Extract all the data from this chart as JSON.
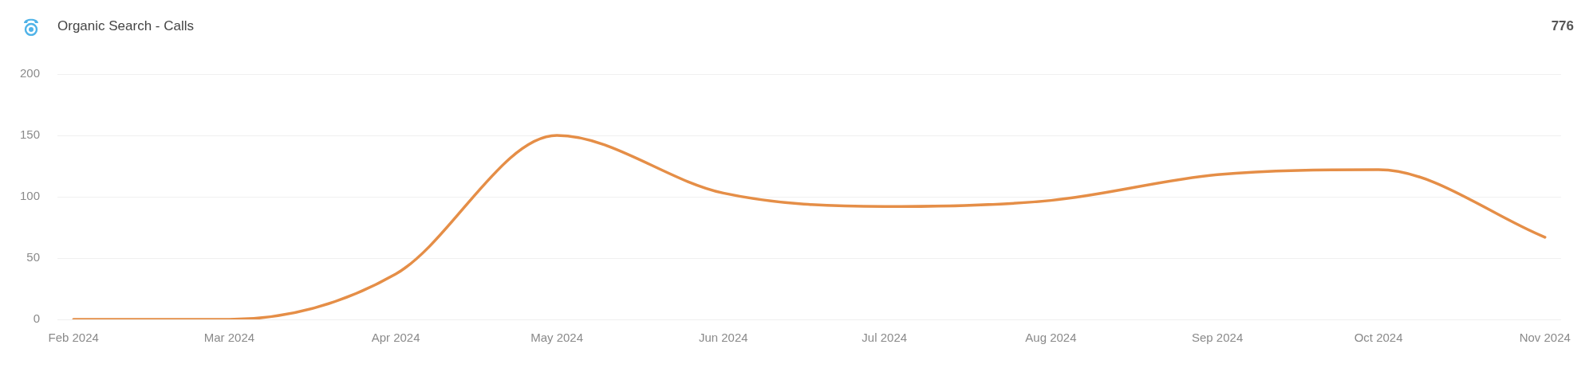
{
  "chart_data": {
    "type": "line",
    "title": "Organic Search - Calls",
    "annotations": [
      "776"
    ],
    "x": [
      "2024-02-01",
      "2024-03-01",
      "2024-04-01",
      "2024-05-01",
      "2024-06-01",
      "2024-07-01",
      "2024-08-01",
      "2024-09-01",
      "2024-10-01",
      "2024-11-01"
    ],
    "series": [
      {
        "color": "#e58e47",
        "values": [
          0,
          0,
          37,
          150,
          103,
          92,
          97,
          118,
          122,
          67
        ]
      }
    ],
    "xlim": [
      "2024-01-29",
      "2024-11-04"
    ],
    "xticks": [
      {
        "value": "2024-02-01",
        "label": "Feb 2024"
      },
      {
        "value": "2024-03-01",
        "label": "Mar 2024"
      },
      {
        "value": "2024-04-01",
        "label": "Apr 2024"
      },
      {
        "value": "2024-05-01",
        "label": "May 2024"
      },
      {
        "value": "2024-06-01",
        "label": "Jun 2024"
      },
      {
        "value": "2024-07-01",
        "label": "Jul 2024"
      },
      {
        "value": "2024-08-01",
        "label": "Aug 2024"
      },
      {
        "value": "2024-09-01",
        "label": "Sep 2024"
      },
      {
        "value": "2024-10-01",
        "label": "Oct 2024"
      },
      {
        "value": "2024-11-01",
        "label": "Nov 2024"
      }
    ],
    "ylim": [
      0,
      200
    ],
    "yticks": [
      0,
      50,
      100,
      150,
      200
    ],
    "grid": "y",
    "marker": "none",
    "line_style": "solid"
  }
}
